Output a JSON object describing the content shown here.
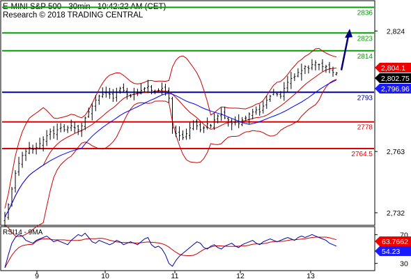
{
  "header": {
    "title": "E-MINI S&P 500 - 30min - 10:42:22 AM (CET)",
    "subtitle": "Research © 2018 TRADING CENTRAL"
  },
  "colors": {
    "resistance": "#00a000",
    "pivot": "#0000a0",
    "support": "#e00000",
    "candle": "#000000",
    "moving_average": "#0000ff",
    "bollinger": "#cc0000",
    "rsi_line": "#0000a0",
    "rsi_ma": "#cc0000",
    "price_box": "#000000",
    "ma_box": "#1a1aff",
    "upper_band_box": "#ee0000",
    "rsi_box": "#1a1aff",
    "rsi_ma_box": "#ee0000",
    "arrow": "#000080"
  },
  "chart_data": {
    "type": "candlestick",
    "title": "E-MINI S&P 500 - 30min - 10:42:22 AM (CET)",
    "ylim": [
      2726,
      2839
    ],
    "y_ticks": [
      "2,824",
      "2,763",
      "2,732"
    ],
    "x_labels": [
      "9",
      "10",
      "11",
      "12",
      "13"
    ],
    "levels": [
      {
        "label": "2836",
        "value": 2836,
        "kind": "resistance"
      },
      {
        "label": "2823",
        "value": 2823,
        "kind": "resistance"
      },
      {
        "label": "2814",
        "value": 2814,
        "kind": "resistance"
      },
      {
        "label": "2793",
        "value": 2793,
        "kind": "pivot"
      },
      {
        "label": "2778",
        "value": 2778,
        "kind": "support"
      },
      {
        "label": "2764.5",
        "value": 2764.5,
        "kind": "support"
      }
    ],
    "price_boxes": [
      {
        "label": "2,804.1",
        "value": 2804.1,
        "kind": "upper_band"
      },
      {
        "label": "2,802.75",
        "value": 2802.75,
        "kind": "price"
      },
      {
        "label": "2,796.96",
        "value": 2796.96,
        "kind": "moving_average"
      }
    ],
    "arrow": {
      "from_value": 2807,
      "to_value": 2823,
      "direction": "up"
    },
    "series": [
      {
        "name": "close",
        "step": 4,
        "values": [
          2730,
          2736,
          2744,
          2752,
          2757,
          2761,
          2763,
          2765,
          2764,
          2765,
          2767,
          2769,
          2771,
          2773,
          2772,
          2774,
          2775,
          2774,
          2775,
          2776,
          2775,
          2774,
          2776,
          2780,
          2783,
          2786,
          2789,
          2791,
          2792,
          2793,
          2792,
          2790,
          2793,
          2795,
          2794,
          2792,
          2791,
          2792,
          2793,
          2794,
          2795,
          2796,
          2794,
          2793,
          2794,
          2795,
          2793,
          2790,
          2775,
          2772,
          2771,
          2770,
          2772,
          2775,
          2778,
          2776,
          2774,
          2775,
          2777,
          2776,
          2779,
          2781,
          2782,
          2780,
          2779,
          2777,
          2778,
          2777,
          2779,
          2780,
          2782,
          2783,
          2784,
          2783,
          2786,
          2789,
          2791,
          2793,
          2792,
          2791,
          2795,
          2798,
          2800,
          2801,
          2803,
          2804,
          2806,
          2805,
          2807,
          2808,
          2807,
          2806,
          2806,
          2805,
          2803,
          2802.75
        ]
      }
    ],
    "indicators": {
      "moving_average": {
        "name": "MA",
        "last": 2796.96
      },
      "bollinger_upper_last": 2804.1
    },
    "rsi": {
      "label": "RSI14 - 9MA",
      "ylim": [
        20,
        80
      ],
      "y_ticks": [
        "70",
        "30"
      ],
      "values": {
        "rsi": 54.23,
        "rsi_ma": 63.7662
      },
      "value_labels": [
        "63.7662",
        "54.23"
      ],
      "rsi_series": [
        24,
        42,
        58,
        66,
        70,
        68,
        62,
        60,
        58,
        62,
        64,
        66,
        68,
        64,
        60,
        62,
        60,
        58,
        56,
        62,
        66,
        70,
        68,
        72,
        66,
        60,
        58,
        62,
        60,
        58,
        56,
        58,
        62,
        60,
        56,
        58,
        60,
        58,
        56,
        60,
        64,
        66,
        56,
        52,
        54,
        50,
        42,
        30,
        26,
        34,
        40,
        44,
        48,
        52,
        56,
        60,
        58,
        52,
        50,
        54,
        56,
        52,
        50,
        54,
        56,
        58,
        54,
        52,
        56,
        58,
        60,
        62,
        58,
        56,
        60,
        62,
        64,
        62,
        60,
        62,
        64,
        66,
        64,
        62,
        66,
        68,
        66,
        68,
        70,
        68,
        66,
        64,
        62,
        58,
        56,
        54
      ]
    }
  }
}
